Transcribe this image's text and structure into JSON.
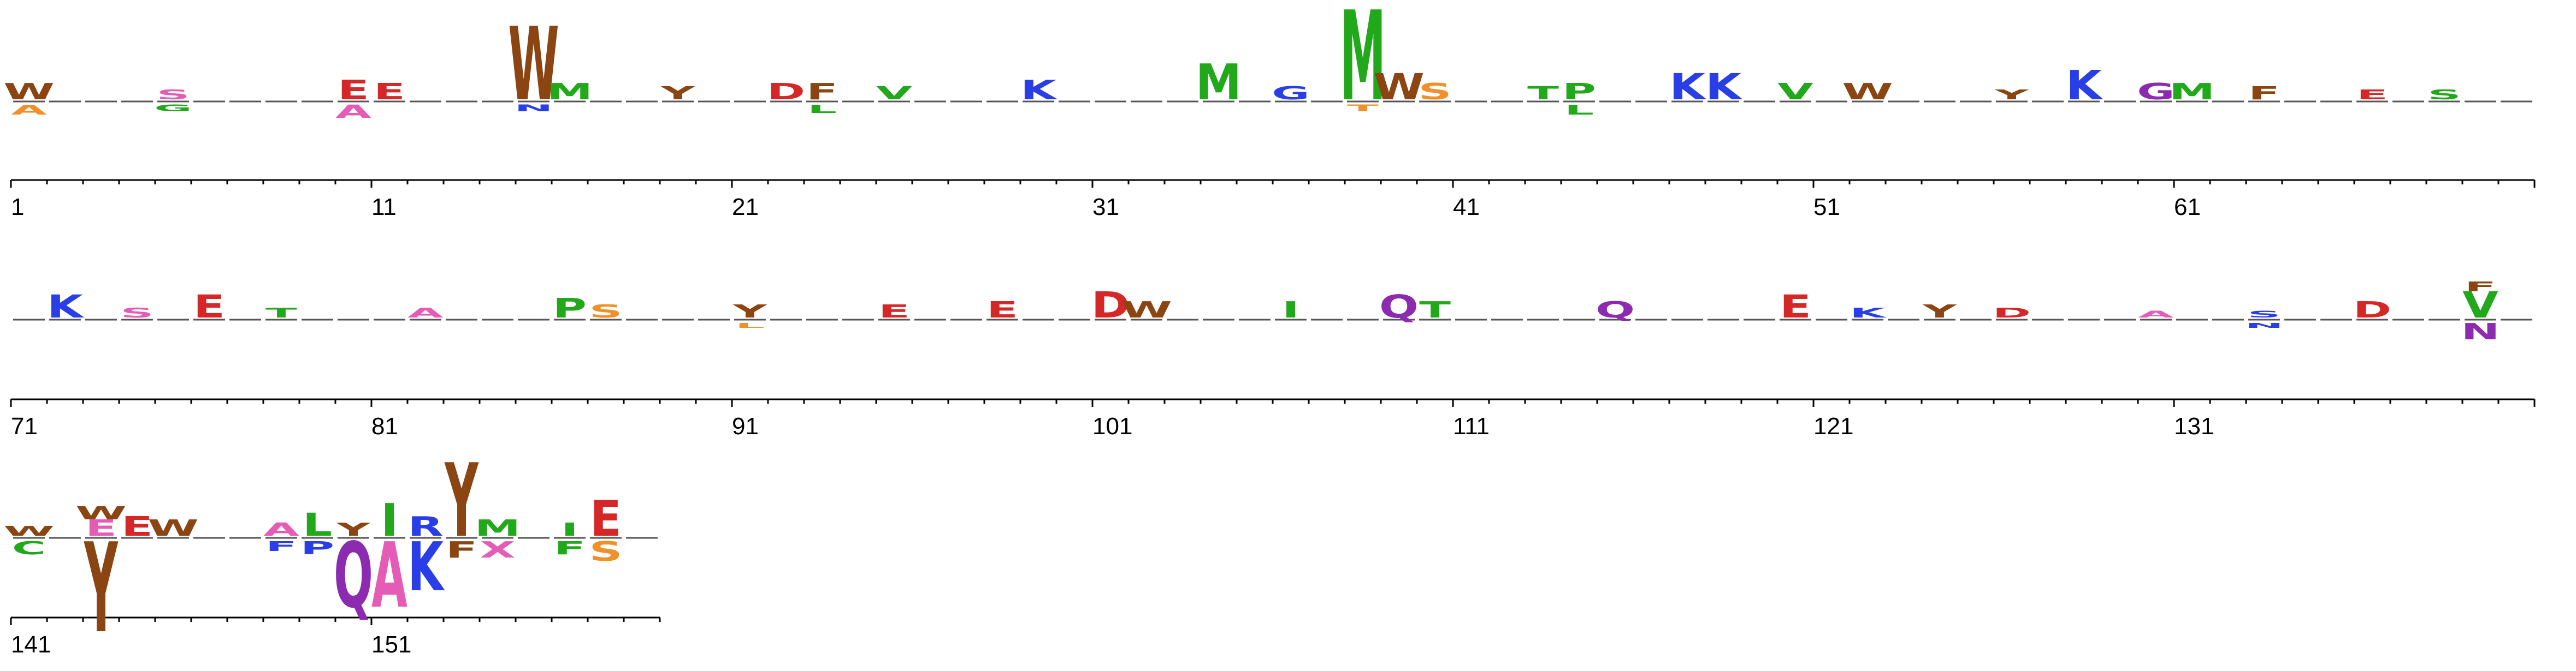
{
  "chart_data": {
    "type": "sequence-logo",
    "title": "",
    "xlabel": "",
    "ylabel": "",
    "position_range": [
      1,
      158
    ],
    "rows": [
      {
        "tick_labels": [
          "1",
          "11",
          "21",
          "31",
          "41",
          "51",
          "61"
        ],
        "positions": [
          {
            "pos": 1,
            "up": [
              [
                "W",
                0.1,
                "brown"
              ]
            ],
            "down": [
              [
                "A",
                0.06,
                "orange"
              ]
            ]
          },
          {
            "pos": 5,
            "up": [
              [
                "S",
                0.06,
                "pink"
              ]
            ],
            "down": [
              [
                "G",
                0.04,
                "green"
              ]
            ]
          },
          {
            "pos": 10,
            "up": [
              [
                "E",
                0.12,
                "red"
              ]
            ],
            "down": [
              [
                "A",
                0.08,
                "pink"
              ]
            ]
          },
          {
            "pos": 11,
            "up": [
              [
                "E",
                0.1,
                "red"
              ]
            ],
            "down": []
          },
          {
            "pos": 15,
            "up": [
              [
                "W",
                0.45,
                "brown"
              ]
            ],
            "down": [
              [
                "N",
                0.04,
                "blue"
              ]
            ]
          },
          {
            "pos": 16,
            "up": [
              [
                "M",
                0.1,
                "green"
              ]
            ],
            "down": []
          },
          {
            "pos": 19,
            "up": [
              [
                "Y",
                0.08,
                "brown"
              ]
            ],
            "down": []
          },
          {
            "pos": 22,
            "up": [
              [
                "D",
                0.1,
                "red"
              ]
            ],
            "down": []
          },
          {
            "pos": 23,
            "up": [
              [
                "F",
                0.1,
                "brown"
              ]
            ],
            "down": [
              [
                "L",
                0.05,
                "green"
              ]
            ]
          },
          {
            "pos": 25,
            "up": [
              [
                "V",
                0.08,
                "green"
              ]
            ],
            "down": []
          },
          {
            "pos": 29,
            "up": [
              [
                "K",
                0.12,
                "blue"
              ]
            ],
            "down": []
          },
          {
            "pos": 34,
            "up": [
              [
                "M",
                0.22,
                "green"
              ]
            ],
            "down": []
          },
          {
            "pos": 36,
            "up": [
              [
                "G",
                0.08,
                "blue"
              ]
            ],
            "down": []
          },
          {
            "pos": 38,
            "up": [
              [
                "M",
                0.55,
                "green"
              ]
            ],
            "down": [
              [
                "T",
                0.04,
                "orange"
              ]
            ]
          },
          {
            "pos": 39,
            "up": [
              [
                "W",
                0.16,
                "brown"
              ]
            ],
            "down": []
          },
          {
            "pos": 40,
            "up": [
              [
                "S",
                0.1,
                "orange"
              ]
            ],
            "down": []
          },
          {
            "pos": 43,
            "up": [
              [
                "T",
                0.08,
                "green"
              ]
            ],
            "down": []
          },
          {
            "pos": 44,
            "up": [
              [
                "P",
                0.1,
                "green"
              ]
            ],
            "down": [
              [
                "L",
                0.06,
                "green"
              ]
            ]
          },
          {
            "pos": 47,
            "up": [
              [
                "K",
                0.16,
                "blue"
              ]
            ],
            "down": []
          },
          {
            "pos": 48,
            "up": [
              [
                "K",
                0.16,
                "blue"
              ]
            ],
            "down": []
          },
          {
            "pos": 50,
            "up": [
              [
                "V",
                0.1,
                "green"
              ]
            ],
            "down": []
          },
          {
            "pos": 52,
            "up": [
              [
                "W",
                0.1,
                "brown"
              ]
            ],
            "down": []
          },
          {
            "pos": 56,
            "up": [
              [
                "Y",
                0.06,
                "brown"
              ]
            ],
            "down": []
          },
          {
            "pos": 58,
            "up": [
              [
                "K",
                0.18,
                "blue"
              ]
            ],
            "down": []
          },
          {
            "pos": 60,
            "up": [
              [
                "G",
                0.1,
                "purple"
              ]
            ],
            "down": []
          },
          {
            "pos": 61,
            "up": [
              [
                "M",
                0.1,
                "green"
              ]
            ],
            "down": []
          },
          {
            "pos": 63,
            "up": [
              [
                "F",
                0.08,
                "brown"
              ]
            ],
            "down": []
          },
          {
            "pos": 66,
            "up": [
              [
                "E",
                0.06,
                "red"
              ]
            ],
            "down": []
          },
          {
            "pos": 68,
            "up": [
              [
                "S",
                0.06,
                "green"
              ]
            ],
            "down": []
          }
        ]
      },
      {
        "tick_labels": [
          "71",
          "81",
          "91",
          "101",
          "111",
          "121",
          "131"
        ],
        "positions": [
          {
            "pos": 72,
            "up": [
              [
                "K",
                0.14,
                "blue"
              ]
            ],
            "down": []
          },
          {
            "pos": 74,
            "up": [
              [
                "S",
                0.06,
                "pink"
              ]
            ],
            "down": []
          },
          {
            "pos": 76,
            "up": [
              [
                "E",
                0.14,
                "red"
              ]
            ],
            "down": []
          },
          {
            "pos": 78,
            "up": [
              [
                "T",
                0.06,
                "green"
              ]
            ],
            "down": []
          },
          {
            "pos": 82,
            "up": [
              [
                "A",
                0.06,
                "pink"
              ]
            ],
            "down": []
          },
          {
            "pos": 86,
            "up": [
              [
                "P",
                0.12,
                "green"
              ]
            ],
            "down": []
          },
          {
            "pos": 87,
            "up": [
              [
                "S",
                0.08,
                "orange"
              ]
            ],
            "down": []
          },
          {
            "pos": 91,
            "up": [
              [
                "Y",
                0.08,
                "brown"
              ]
            ],
            "down": [
              [
                "L",
                0.03,
                "orange"
              ]
            ]
          },
          {
            "pos": 95,
            "up": [
              [
                "E",
                0.08,
                "red"
              ]
            ],
            "down": []
          },
          {
            "pos": 98,
            "up": [
              [
                "E",
                0.1,
                "red"
              ]
            ],
            "down": []
          },
          {
            "pos": 101,
            "up": [
              [
                "D",
                0.16,
                "red"
              ]
            ],
            "down": []
          },
          {
            "pos": 102,
            "up": [
              [
                "W",
                0.1,
                "brown"
              ]
            ],
            "down": []
          },
          {
            "pos": 106,
            "up": [
              [
                "I",
                0.1,
                "green"
              ]
            ],
            "down": []
          },
          {
            "pos": 109,
            "up": [
              [
                "Q",
                0.14,
                "purple"
              ]
            ],
            "down": []
          },
          {
            "pos": 110,
            "up": [
              [
                "T",
                0.1,
                "green"
              ]
            ],
            "down": []
          },
          {
            "pos": 115,
            "up": [
              [
                "Q",
                0.1,
                "purple"
              ]
            ],
            "down": []
          },
          {
            "pos": 120,
            "up": [
              [
                "E",
                0.14,
                "red"
              ]
            ],
            "down": []
          },
          {
            "pos": 122,
            "up": [
              [
                "K",
                0.06,
                "blue"
              ]
            ],
            "down": []
          },
          {
            "pos": 124,
            "up": [
              [
                "Y",
                0.08,
                "brown"
              ]
            ],
            "down": []
          },
          {
            "pos": 126,
            "up": [
              [
                "D",
                0.06,
                "red"
              ]
            ],
            "down": []
          },
          {
            "pos": 130,
            "up": [
              [
                "A",
                0.04,
                "pink"
              ]
            ],
            "down": []
          },
          {
            "pos": 133,
            "up": [
              [
                "S",
                0.04,
                "blue"
              ]
            ],
            "down": [
              [
                "N",
                0.03,
                "blue"
              ]
            ]
          },
          {
            "pos": 136,
            "up": [
              [
                "D",
                0.1,
                "red"
              ]
            ],
            "down": []
          },
          {
            "pos": 139,
            "up": [
              [
                "V",
                0.16,
                "green"
              ],
              [
                "F",
                0.06,
                "brown"
              ]
            ],
            "down": [
              [
                "N",
                0.1,
                "purple"
              ]
            ]
          }
        ]
      },
      {
        "tick_labels": [
          "141",
          "151"
        ],
        "positions": [
          {
            "pos": 141,
            "up": [
              [
                "W",
                0.06,
                "brown"
              ]
            ],
            "down": [
              [
                "C",
                0.08,
                "green"
              ]
            ]
          },
          {
            "pos": 143,
            "up": [
              [
                "E",
                0.1,
                "pink"
              ],
              [
                "W",
                0.08,
                "brown"
              ]
            ],
            "down": [
              [
                "Y",
                0.55,
                "brown"
              ]
            ]
          },
          {
            "pos": 144,
            "up": [
              [
                "E",
                0.12,
                "red"
              ]
            ],
            "down": []
          },
          {
            "pos": 145,
            "up": [
              [
                "W",
                0.1,
                "brown"
              ]
            ],
            "down": []
          },
          {
            "pos": 148,
            "up": [
              [
                "A",
                0.08,
                "pink"
              ]
            ],
            "down": [
              [
                "F",
                0.06,
                "blue"
              ]
            ]
          },
          {
            "pos": 149,
            "up": [
              [
                "L",
                0.14,
                "green"
              ]
            ],
            "down": [
              [
                "P",
                0.08,
                "blue"
              ]
            ]
          },
          {
            "pos": 150,
            "up": [
              [
                "Y",
                0.08,
                "brown"
              ]
            ],
            "down": [
              [
                "Q",
                0.4,
                "purple"
              ]
            ]
          },
          {
            "pos": 151,
            "up": [
              [
                "I",
                0.2,
                "green"
              ]
            ],
            "down": [
              [
                "A",
                0.4,
                "pink"
              ]
            ]
          },
          {
            "pos": 152,
            "up": [
              [
                "R",
                0.12,
                "blue"
              ]
            ],
            "down": [
              [
                "K",
                0.3,
                "blue"
              ]
            ]
          },
          {
            "pos": 153,
            "up": [
              [
                "Y",
                0.45,
                "brown"
              ]
            ],
            "down": [
              [
                "F",
                0.1,
                "brown"
              ]
            ]
          },
          {
            "pos": 154,
            "up": [
              [
                "M",
                0.1,
                "green"
              ]
            ],
            "down": [
              [
                "X",
                0.1,
                "pink"
              ]
            ]
          },
          {
            "pos": 156,
            "up": [
              [
                "I",
                0.08,
                "green"
              ]
            ],
            "down": [
              [
                "F",
                0.08,
                "green"
              ]
            ]
          },
          {
            "pos": 157,
            "up": [
              [
                "E",
                0.22,
                "red"
              ]
            ],
            "down": [
              [
                "S",
                0.12,
                "orange"
              ]
            ]
          }
        ]
      }
    ]
  },
  "colors": {
    "red": "#d62728",
    "blue": "#2a3ee8",
    "green": "#22a81b",
    "orange": "#f0902a",
    "purple": "#8c2ab0",
    "pink": "#e55cb6",
    "brown": "#8b4513"
  }
}
